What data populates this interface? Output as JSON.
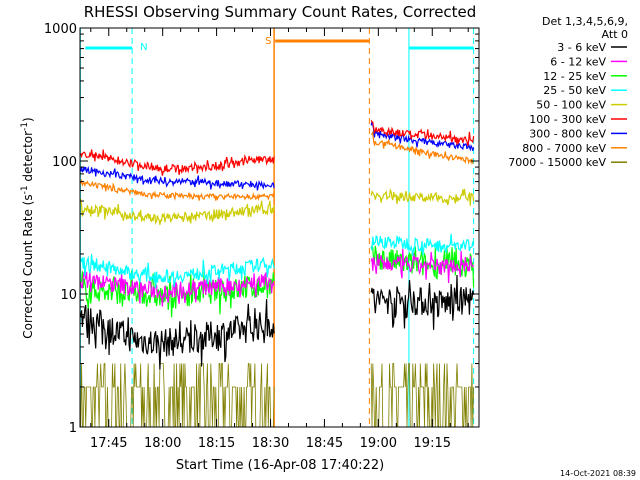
{
  "chart_data": {
    "type": "line",
    "title": "RHESSI Observing Summary Count Rates, Corrected",
    "xlabel": "Start Time (16-Apr-08 17:40:22)",
    "ylabel_main": "Corrected Count Rate (s",
    "ylabel_sup1": "-1",
    "ylabel_mid": " detector",
    "ylabel_sup2": "-1",
    "ylabel_end": ")",
    "yscale": "log",
    "ylim": [
      1,
      1000
    ],
    "xlim_minutes": [
      -8,
      103
    ],
    "x_ticks": [
      {
        "label": "17:45",
        "min": 0
      },
      {
        "label": "18:00",
        "min": 15
      },
      {
        "label": "18:15",
        "min": 30
      },
      {
        "label": "18:30",
        "min": 45
      },
      {
        "label": "18:45",
        "min": 60
      },
      {
        "label": "19:00",
        "min": 75
      },
      {
        "label": "19:15",
        "min": 90
      }
    ],
    "y_ticks": [
      {
        "label": "1",
        "v": 1
      },
      {
        "label": "10",
        "v": 10
      },
      {
        "label": "100",
        "v": 100
      },
      {
        "label": "1000",
        "v": 1000
      }
    ],
    "legend_header": [
      "Det 1,3,4,5,6,9,",
      "Att 0"
    ],
    "legend_placement": "top-right, outside plot",
    "timestamp": "14-Oct-2021 08:39",
    "gap_minutes": [
      46,
      72.5
    ],
    "series": [
      {
        "name": "3 - 6 keV",
        "color": "#000000",
        "pre": [
          7,
          5.5,
          4.5,
          4.3,
          4.5,
          5.0,
          5.5,
          6.0
        ],
        "post": [
          9,
          9,
          8.5,
          9
        ]
      },
      {
        "name": "6 - 12 keV",
        "color": "#ff00ff",
        "pre": [
          13,
          12,
          11,
          10.5,
          11,
          11.5,
          12,
          12.5
        ],
        "post": [
          17,
          16.5,
          16,
          17
        ]
      },
      {
        "name": "12 - 25 keV",
        "color": "#00ff00",
        "pre": [
          11,
          10.5,
          10,
          9.5,
          10,
          10.5,
          11,
          11.5
        ],
        "post": [
          19,
          17,
          16,
          16
        ]
      },
      {
        "name": "25 - 50 keV",
        "color": "#00ffff",
        "pre": [
          17,
          16,
          14,
          13.5,
          14,
          15,
          16,
          17
        ],
        "post": [
          25,
          24,
          23,
          23
        ]
      },
      {
        "name": "50 - 100 keV",
        "color": "#cccc00",
        "pre": [
          45,
          42,
          38,
          37,
          38,
          40,
          42,
          44
        ],
        "post": [
          55,
          54,
          53,
          53
        ]
      },
      {
        "name": "100 - 300 keV",
        "color": "#ff0000",
        "pre": [
          113,
          105,
          95,
          88,
          88,
          92,
          100,
          105
        ],
        "post": [
          175,
          160,
          150,
          145
        ]
      },
      {
        "name": "300 - 800 keV",
        "color": "#0000ff",
        "pre": [
          88,
          80,
          75,
          70,
          70,
          68,
          67,
          66
        ],
        "post": [
          165,
          145,
          135,
          125
        ]
      },
      {
        "name": "800 - 7000 keV",
        "color": "#ff8000",
        "pre": [
          68,
          63,
          58,
          55,
          54,
          54,
          54,
          54
        ],
        "post": [
          140,
          125,
          110,
          100
        ]
      },
      {
        "name": "7000 - 15000 keV",
        "color": "#808000",
        "pre": [
          2,
          2,
          2,
          2,
          2,
          2,
          2,
          2
        ],
        "post": [
          2,
          2,
          2,
          2
        ]
      }
    ],
    "annotations": [
      {
        "text": "N",
        "min": 1.5,
        "color": "#00ffff"
      },
      {
        "text": "S",
        "min": 45,
        "color": "#ff8000"
      }
    ]
  }
}
